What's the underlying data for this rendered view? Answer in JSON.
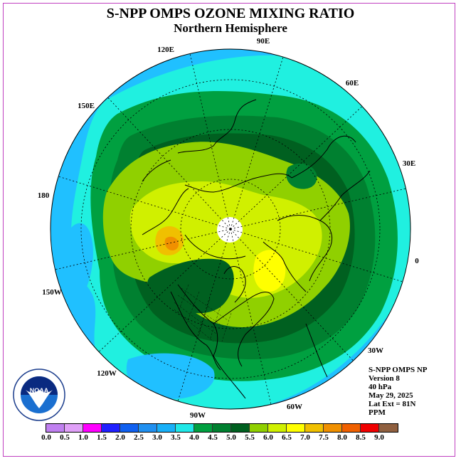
{
  "title": "S-NPP OMPS OZONE MIXING RATIO",
  "subtitle": "Northern Hemisphere",
  "longitude_labels": {
    "e90": "90E",
    "e60": "60E",
    "e30": "30E",
    "zero": "0",
    "w30": "30W",
    "w60": "60W",
    "w90": "90W",
    "w120": "120W",
    "w150": "150W",
    "d180": "180",
    "e150": "150E",
    "e120": "120E"
  },
  "info": {
    "instrument": "S-NPP OMPS NP",
    "version": "Version 8",
    "level": "40 hPa",
    "date": "May 29, 2025",
    "lat_ext": "Lat Ext = 81N",
    "units": "PPM"
  },
  "logo": {
    "text": "NOAA"
  },
  "colorbar": {
    "labels": [
      "0.0",
      "0.5",
      "1.0",
      "1.5",
      "2.0",
      "2.5",
      "3.0",
      "3.5",
      "4.0",
      "4.5",
      "5.0",
      "5.5",
      "6.0",
      "6.5",
      "7.0",
      "7.5",
      "8.0",
      "8.5",
      "9.0"
    ],
    "colors": [
      "#c080f0",
      "#e0a0f8",
      "#ff00ff",
      "#2020ff",
      "#1060f0",
      "#2090f0",
      "#18b0f8",
      "#20e8e8",
      "#00a040",
      "#008030",
      "#006020",
      "#90d000",
      "#d0f000",
      "#ffff00",
      "#f0c000",
      "#f09000",
      "#f06000",
      "#f00000",
      "#906040"
    ]
  },
  "map_colors": {
    "ocean_band": "#20c0ff",
    "cyan": "#20f0e0",
    "green_light": "#00a040",
    "green_mid": "#008030",
    "green_dark": "#006020",
    "lime": "#90d000",
    "yellow_green": "#d0f000",
    "yellow": "#ffff00",
    "orange": "#f0a000",
    "pole": "#ffffff"
  }
}
